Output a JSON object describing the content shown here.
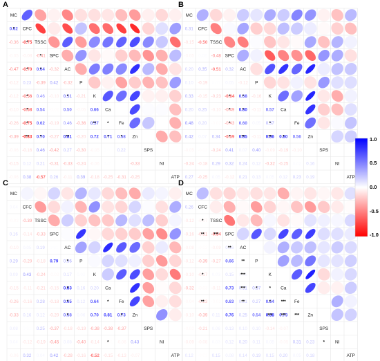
{
  "figure": {
    "colors": {
      "negative": "#ff0000",
      "zero": "#ffffff",
      "positive": "#0000ff",
      "grid": "#e6e6e6"
    },
    "colorbar": {
      "ticks": [
        "1.0",
        "0.5",
        "0.0",
        "-0.5",
        "-1.0"
      ],
      "range": [
        -1,
        1
      ]
    }
  },
  "chart_data": [
    {
      "type": "heatmap",
      "panel": "A",
      "variables": [
        "MC",
        "CFC",
        "TSSC",
        "SPC",
        "AC",
        "P",
        "K",
        "Ca",
        "Fe",
        "Zn",
        "SPS",
        "NI",
        "ATP"
      ],
      "lower_labels": [
        [
          "0.62"
        ],
        [
          "-0.36",
          "-0.75"
        ],
        [
          "-0.05",
          "-0.08",
          "-0.41"
        ],
        [
          "-0.47",
          "-0.70",
          "0.64",
          "-0.32"
        ],
        [
          "-0.12",
          "0.23",
          "-0.39",
          "0.42",
          "-0.32"
        ],
        [
          "-0.12",
          "-0.56",
          "0.46",
          "-0.10",
          "0.51",
          "-0.21"
        ],
        [
          "-0.10",
          "-0.58",
          "0.54",
          "-0.02",
          "0.50",
          "-0.05",
          "0.66"
        ],
        [
          "-0.26",
          "-0.75",
          "0.62",
          "-0.19",
          "0.46",
          "-0.36",
          "0.57"
        ],
        [
          "-0.39",
          "-0.83",
          "0.70",
          "-0.27",
          "0.81",
          "-0.20",
          "0.72",
          "0.71",
          "0.58"
        ],
        [
          "-0.06",
          "-0.16",
          "0.46",
          "-0.42",
          "0.27",
          "-0.30",
          "-0.05",
          "0.01",
          "0.22"
        ],
        [
          "-0.15",
          "0.12",
          "0.21",
          "-0.31",
          "-0.33",
          "-0.24",
          "-0.06",
          "0.01",
          "0.00",
          "-0.33"
        ],
        [
          "-0.06",
          "0.38",
          "-0.57",
          "0.26",
          "-0.11",
          "0.39",
          "-0.18",
          "-0.25",
          "-0.31",
          "-0.25"
        ]
      ],
      "lower_values": [
        [
          0.62
        ],
        [
          -0.36,
          -0.75
        ],
        [
          -0.05,
          -0.08,
          -0.41
        ],
        [
          -0.47,
          -0.7,
          0.64,
          -0.32
        ],
        [
          -0.12,
          0.23,
          -0.39,
          0.42,
          -0.32
        ],
        [
          -0.12,
          -0.56,
          0.46,
          -0.1,
          0.51,
          -0.21
        ],
        [
          -0.1,
          -0.58,
          0.54,
          -0.02,
          0.5,
          -0.05,
          0.66
        ],
        [
          -0.26,
          -0.75,
          0.62,
          -0.19,
          0.46,
          -0.36,
          0.57
        ],
        [
          -0.39,
          -0.83,
          0.7,
          -0.27,
          0.81,
          -0.2,
          0.72,
          0.71,
          0.58
        ],
        [
          -0.06,
          -0.16,
          0.46,
          -0.42,
          0.27,
          -0.3,
          -0.05,
          0.01,
          0.22
        ],
        [
          -0.15,
          0.12,
          0.21,
          -0.31,
          -0.33,
          -0.24,
          -0.06,
          0.01,
          0,
          -0.33
        ],
        [
          -0.06,
          0.38,
          -0.57,
          0.26,
          -0.11,
          0.39,
          -0.18,
          -0.25,
          -0.31,
          -0.25
        ]
      ],
      "stars": [
        [
          1,
          0,
          "*"
        ],
        [
          2,
          1,
          "*"
        ],
        [
          4,
          1,
          "*"
        ],
        [
          6,
          1,
          "*"
        ],
        [
          7,
          1,
          "*"
        ],
        [
          8,
          1,
          "*"
        ],
        [
          9,
          1,
          "**"
        ],
        [
          3,
          2,
          "*"
        ],
        [
          4,
          2,
          "*"
        ],
        [
          9,
          2,
          "*"
        ],
        [
          6,
          4,
          "*"
        ],
        [
          9,
          4,
          "**"
        ],
        [
          8,
          6,
          "**"
        ],
        [
          8,
          7,
          "*"
        ],
        [
          9,
          7,
          "*"
        ],
        [
          9,
          8,
          "*"
        ]
      ]
    },
    {
      "type": "heatmap",
      "panel": "B",
      "variables": [
        "MC",
        "CFC",
        "TSSC",
        "SPC",
        "AC",
        "P",
        "K",
        "Ca",
        "Fe",
        "Zn",
        "SPS",
        "NI",
        "ATP"
      ],
      "lower_labels": [
        [
          "0.31"
        ],
        [
          "-0.15",
          "-0.50"
        ],
        [
          "-0.05",
          "0.02",
          "-0.48"
        ],
        [
          "0.20",
          "0.35",
          "-0.51",
          "0.32"
        ],
        [
          "0.10",
          "-0.19",
          "0.01",
          "0.05",
          "-0.12"
        ],
        [
          "0.33",
          "-0.15",
          "-0.23",
          "-0.64",
          "0.68",
          "-0.16"
        ],
        [
          "0.20",
          "0.25",
          "-0.10",
          "-0.49",
          "0.80",
          "-0.11",
          "0.57"
        ],
        [
          "0.48",
          "0.20",
          "-0.02",
          "-0.43",
          "0.60",
          "0.05",
          "0.37"
        ],
        [
          "0.42",
          "0.07",
          "0.34",
          "-0.59",
          "0.85",
          "-0.11",
          "0.86",
          "0.80",
          "0.56"
        ],
        [
          "-0.05",
          "-0.02",
          "-0.24",
          "0.41",
          "0.07",
          "0.40",
          "-0.09",
          "-0.19",
          "-0.10"
        ],
        [
          "-0.24",
          "-0.18",
          "0.29",
          "0.32",
          "0.24",
          "0.12",
          "-0.32",
          "-0.25",
          "0.02",
          "0.16"
        ],
        [
          "0.27",
          "-0.25",
          "0.05",
          "-0.12",
          "0.21",
          "0.13",
          "0.05",
          "0.12",
          "0.23",
          "0.19"
        ]
      ],
      "lower_values": [
        [
          0.31
        ],
        [
          -0.15,
          -0.5
        ],
        [
          -0.05,
          0.02,
          -0.48
        ],
        [
          0.2,
          0.35,
          -0.51,
          0.32
        ],
        [
          0.1,
          -0.19,
          0.01,
          0.05,
          -0.12
        ],
        [
          0.33,
          -0.15,
          -0.23,
          -0.64,
          0.68,
          -0.16
        ],
        [
          0.2,
          0.25,
          -0.1,
          -0.49,
          0.8,
          -0.11,
          0.57
        ],
        [
          0.48,
          0.2,
          -0.02,
          -0.43,
          0.6,
          0.05,
          0.37
        ],
        [
          0.42,
          0.07,
          0.34,
          -0.59,
          0.85,
          -0.11,
          0.86,
          0.8,
          0.56
        ],
        [
          -0.05,
          -0.02,
          -0.24,
          0.41,
          0.07,
          0.4,
          -0.09,
          -0.19,
          -0.1
        ],
        [
          -0.24,
          -0.18,
          0.29,
          0.32,
          0.24,
          0.12,
          -0.32,
          -0.25,
          0.02,
          0.16
        ],
        [
          0.27,
          -0.25,
          0.05,
          -0.12,
          0.21,
          0.13,
          0.05,
          0.12,
          0.23,
          0.19
        ]
      ],
      "stars": [
        [
          6,
          3,
          "*"
        ],
        [
          7,
          3,
          "*"
        ],
        [
          8,
          3,
          "*"
        ],
        [
          9,
          3,
          "*"
        ],
        [
          6,
          4,
          "*"
        ],
        [
          7,
          4,
          "*"
        ],
        [
          9,
          4,
          "**"
        ],
        [
          8,
          6,
          "*"
        ],
        [
          9,
          6,
          "**"
        ],
        [
          9,
          7,
          "*"
        ]
      ]
    },
    {
      "type": "heatmap",
      "panel": "C",
      "variables": [
        "MC",
        "CFC",
        "TSSC",
        "SPC",
        "AC",
        "P",
        "K",
        "Ca",
        "Fe",
        "Zn",
        "SPS",
        "NI",
        "ATP"
      ],
      "lower_labels": [
        [
          "0.04"
        ],
        [
          "-0.03",
          "-0.39"
        ],
        [
          "0.16",
          "-0.14",
          "-0.33"
        ],
        [
          "-0.10",
          "0.05",
          "0.19",
          "0.01"
        ],
        [
          "0.29",
          "-0.29",
          "-0.18",
          "0.79",
          "0.36"
        ],
        [
          "0.09",
          "0.43",
          "-0.24",
          "-0.03",
          "0.17",
          "0.02"
        ],
        [
          "-0.15",
          "-0.11",
          "-0.21",
          "-0.15",
          "0.83",
          "0.16",
          "0.20"
        ],
        [
          "-0.26",
          "-0.16",
          "0.28",
          "-0.18",
          "0.65",
          "0.12",
          "0.64"
        ],
        [
          "-0.33",
          "0.16",
          "0.12",
          "-0.20",
          "0.58",
          "0.06",
          "0.70",
          "0.81",
          "0.73"
        ],
        [
          "0.08",
          "0.01",
          "0.25",
          "-0.37",
          "-0.18",
          "-0.19",
          "-0.38",
          "-0.38",
          "-0.37"
        ],
        [
          "0.04",
          "-0.12",
          "-0.19",
          "-0.45",
          "0.08",
          "-0.40",
          "-0.14",
          "-0.01",
          "-0.06",
          "0.43"
        ],
        [
          "-0.06",
          "0.32",
          "0.04",
          "0.42",
          "-0.28",
          "-0.16",
          "-0.52",
          "-0.15",
          "-0.13",
          "-0.07"
        ]
      ],
      "lower_values": [
        [
          0.04
        ],
        [
          -0.03,
          -0.39
        ],
        [
          0.16,
          -0.14,
          -0.33
        ],
        [
          -0.1,
          0.05,
          0.19,
          0.01
        ],
        [
          0.29,
          -0.29,
          -0.18,
          0.79,
          0.36
        ],
        [
          0.09,
          0.43,
          -0.24,
          -0.03,
          0.17,
          0.02
        ],
        [
          -0.15,
          -0.11,
          -0.21,
          -0.15,
          0.83,
          0.16,
          0.2
        ],
        [
          -0.26,
          -0.16,
          0.28,
          -0.18,
          0.65,
          0.12,
          0.64
        ],
        [
          -0.33,
          0.16,
          0.12,
          -0.2,
          0.58,
          0.06,
          0.7,
          0.81,
          0.73
        ],
        [
          0.08,
          0.01,
          0.25,
          -0.37,
          -0.18,
          -0.19,
          -0.38,
          -0.38,
          -0.37
        ],
        [
          0.04,
          -0.12,
          -0.19,
          -0.45,
          0.08,
          -0.4,
          -0.14,
          -0.01,
          -0.06,
          0.43
        ],
        [
          -0.06,
          0.32,
          0.04,
          0.42,
          -0.28,
          -0.16,
          -0.52,
          -0.15,
          -0.13,
          -0.07
        ]
      ],
      "stars": [
        [
          5,
          4,
          "*"
        ],
        [
          7,
          4,
          "*"
        ],
        [
          8,
          4,
          "*"
        ],
        [
          9,
          4,
          "*"
        ],
        [
          8,
          7,
          "*"
        ],
        [
          11,
          7,
          "*"
        ],
        [
          9,
          8,
          "*"
        ]
      ]
    },
    {
      "type": "heatmap",
      "panel": "D",
      "variables": [
        "MC",
        "CFC",
        "TSSC",
        "SPC",
        "AC",
        "P",
        "K",
        "Ca",
        "Fe",
        "Zn",
        "SPS",
        "NI",
        "ATP"
      ],
      "lower_labels": [
        [
          "0.26"
        ],
        [
          "-0.12",
          "-0.07"
        ],
        [
          "-0.16",
          "-0.31",
          "-0.54"
        ],
        [
          "-0.08",
          "-0.02",
          "-0.09",
          "0.16"
        ],
        [
          "-0.12",
          "-0.39",
          "-0.27",
          "0.66"
        ],
        [
          "-0.10",
          "-0.17",
          "0.03",
          "0.15",
          "0.05"
        ],
        [
          "-0.32",
          "-0.03",
          "-0.11",
          "0.73",
          "0.31",
          "0.37"
        ],
        [
          "-0.04",
          "-0.23",
          "-0.02",
          "0.63",
          "0.21",
          "0.27",
          "0.64"
        ],
        [
          "-0.10",
          "-0.39",
          "0.11",
          "0.76",
          "0.25",
          "0.54",
          "0.88",
          "0.73"
        ],
        [
          "-0.03",
          "-0.21",
          "0.06",
          "0.13",
          "0.10",
          "0.10",
          "-0.14",
          "-0.07"
        ],
        [
          "-0.09",
          "-0.08",
          "0.03",
          "0.12",
          "0.20",
          "0.11",
          "0.05",
          "-0.05",
          "0.31",
          "0.23"
        ],
        [
          "0.12",
          "-0.01",
          "0.15",
          "0.08",
          "0.14",
          "0.19",
          "0.15",
          "0.20",
          "0.05",
          "0.18"
        ]
      ],
      "lower_values": [
        [
          0.26
        ],
        [
          -0.12,
          -0.07
        ],
        [
          -0.16,
          -0.31,
          -0.54
        ],
        [
          -0.08,
          -0.02,
          -0.09,
          0.16
        ],
        [
          -0.12,
          -0.39,
          -0.27,
          0.66
        ],
        [
          -0.1,
          -0.17,
          0.03,
          0.15,
          0.05
        ],
        [
          -0.32,
          -0.03,
          -0.11,
          0.73,
          0.31,
          0.37
        ],
        [
          -0.04,
          -0.23,
          -0.02,
          0.63,
          0.21,
          0.27,
          0.64
        ],
        [
          -0.1,
          -0.39,
          0.11,
          0.76,
          0.25,
          0.54,
          0.88,
          0.73
        ],
        [
          -0.03,
          -0.21,
          0.06,
          0.13,
          0.1,
          0.1,
          -0.14,
          -0.07
        ],
        [
          -0.09,
          -0.08,
          0.03,
          0.12,
          0.2,
          0.11,
          0.05,
          -0.05,
          0.31,
          0.23
        ],
        [
          0.12,
          -0.01,
          0.15,
          0.08,
          0.14,
          0.19,
          0.15,
          0.2,
          0.05,
          0.18
        ]
      ],
      "stars": [
        [
          2,
          1,
          "*"
        ],
        [
          3,
          1,
          "**"
        ],
        [
          6,
          1,
          "*"
        ],
        [
          8,
          1,
          "**"
        ],
        [
          3,
          2,
          "***"
        ],
        [
          4,
          3,
          "**"
        ],
        [
          5,
          4,
          "**"
        ],
        [
          6,
          4,
          "***"
        ],
        [
          7,
          4,
          "***"
        ],
        [
          8,
          4,
          "**"
        ],
        [
          7,
          5,
          "*"
        ],
        [
          7,
          6,
          "*"
        ],
        [
          8,
          6,
          "*"
        ],
        [
          9,
          6,
          "***"
        ],
        [
          8,
          7,
          "***"
        ],
        [
          9,
          7,
          "***"
        ],
        [
          9,
          8,
          "***"
        ],
        [
          11,
          10,
          "*"
        ]
      ]
    }
  ]
}
